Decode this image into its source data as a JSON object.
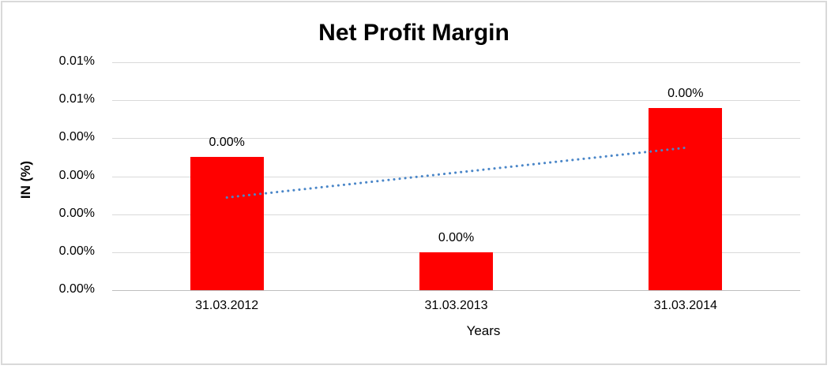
{
  "chart_data": {
    "type": "bar",
    "title": "Net Profit Margin",
    "categories": [
      "31.03.2012",
      "31.03.2013",
      "31.03.2014"
    ],
    "values": [
      0.0035,
      0.001,
      0.0048
    ],
    "data_labels": [
      "0.00%",
      "0.00%",
      "0.00%"
    ],
    "xlabel": "Years",
    "ylabel": "IN (%)",
    "ylim": [
      0,
      0.006
    ],
    "y_tick_step": 0.001,
    "y_tick_labels_bottom_to_top": [
      "0.00%",
      "0.00%",
      "0.00%",
      "0.00%",
      "0.00%",
      "0.01%",
      "0.01%"
    ],
    "grid": true,
    "legend": "none",
    "bar_color": "#ff0000",
    "gridline_color": "#d9d9d9",
    "trendline": {
      "style": "dotted",
      "color": "#4a86c8",
      "start_value": 0.00244,
      "end_value": 0.00375
    }
  }
}
